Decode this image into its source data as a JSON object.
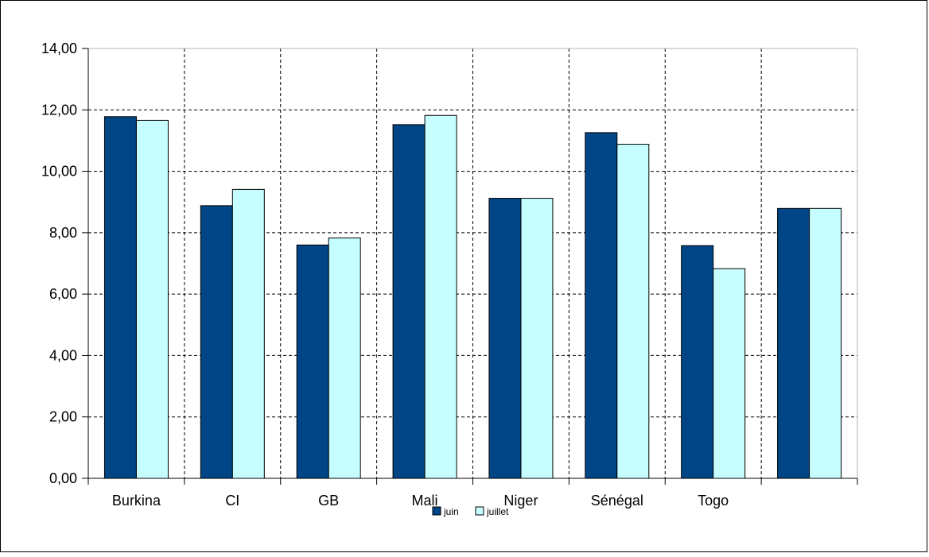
{
  "chart_data": {
    "type": "bar",
    "title": "",
    "xlabel": "",
    "ylabel": "",
    "categories": [
      "Burkina",
      "CI",
      "GB",
      "Mali",
      "Niger",
      "Sénégal",
      "Togo",
      ""
    ],
    "series": [
      {
        "name": "juin",
        "color": "#004586",
        "values": [
          11.78,
          8.88,
          7.6,
          11.52,
          9.12,
          11.26,
          7.58,
          8.79
        ]
      },
      {
        "name": "juillet",
        "color": "#c6feff",
        "values": [
          11.66,
          9.41,
          7.83,
          11.82,
          9.12,
          10.88,
          6.83,
          8.79
        ]
      }
    ],
    "ylim": [
      0,
      14
    ],
    "yticks": [
      "0,00",
      "2,00",
      "4,00",
      "6,00",
      "8,00",
      "10,00",
      "12,00",
      "14,00"
    ],
    "ytick_values": [
      0,
      2,
      4,
      6,
      8,
      10,
      12,
      14
    ],
    "grid": true,
    "legend_position": "bottom-center"
  }
}
